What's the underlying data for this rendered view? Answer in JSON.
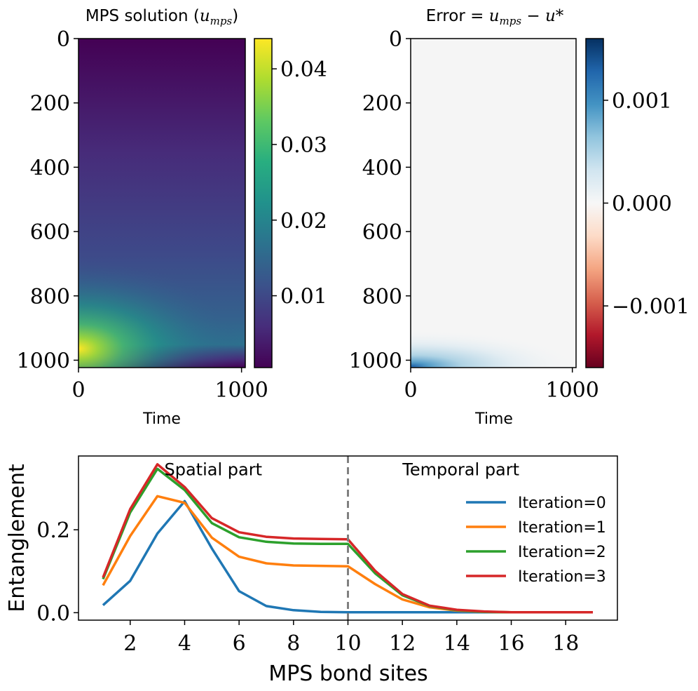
{
  "chart_data": [
    {
      "type": "heatmap",
      "title_prefix": "MPS solution (",
      "title_math": "u",
      "title_sub": "mps",
      "title_suffix": ")",
      "xlabel": "Time",
      "ylabel": "",
      "x_ticks": [
        "0",
        "1000"
      ],
      "y_ticks": [
        "0",
        "200",
        "400",
        "600",
        "800",
        "1000"
      ],
      "xlim": [
        0,
        1023
      ],
      "ylim": [
        1023,
        0
      ],
      "colormap": "viridis",
      "colorbar": {
        "range": [
          0.0005,
          0.044
        ],
        "ticks": [
          0.01,
          0.02,
          0.03,
          0.04
        ],
        "tick_labels": [
          "0.01",
          "0.02",
          "0.03",
          "0.04"
        ]
      },
      "peak": {
        "x": 0,
        "y": 960,
        "value": 0.044
      }
    },
    {
      "type": "heatmap",
      "title_prefix": "Error = ",
      "title_math": "u",
      "title_sub": "mps",
      "title_suffix": " − u*",
      "xlabel": "Time",
      "ylabel": "",
      "x_ticks": [
        "0",
        "1000"
      ],
      "y_ticks": [
        "0",
        "200",
        "400",
        "600",
        "800",
        "1000"
      ],
      "xlim": [
        0,
        1023
      ],
      "ylim": [
        1023,
        0
      ],
      "colormap": "RdBu",
      "colorbar": {
        "range": [
          -0.0016,
          0.0016
        ],
        "ticks": [
          0.001,
          0.0,
          -0.001
        ],
        "tick_labels": [
          "0.001",
          "0.000",
          "−0.001"
        ]
      },
      "peak": {
        "x": 0,
        "y": 1020,
        "value": 0.0012
      }
    },
    {
      "type": "line",
      "xlabel": "MPS bond sites",
      "ylabel": "Entanglement",
      "x": [
        1,
        2,
        3,
        4,
        5,
        6,
        7,
        8,
        9,
        10,
        11,
        12,
        13,
        14,
        15,
        16,
        17,
        18,
        19
      ],
      "x_ticks": [
        2,
        4,
        6,
        8,
        10,
        12,
        14,
        16,
        18
      ],
      "y_ticks": [
        0.0,
        0.2
      ],
      "y_tick_labels": [
        "0.0",
        "0.2"
      ],
      "xlim": [
        0.1,
        19.9
      ],
      "ylim": [
        -0.018,
        0.378
      ],
      "divider_x": 10,
      "annotations": [
        {
          "text": "Spatial part",
          "x": 5.05,
          "y": 0.345
        },
        {
          "text": "Temporal part",
          "x": 14.15,
          "y": 0.345
        }
      ],
      "legend_position": "upper-right",
      "series": [
        {
          "name": "Iteration=0",
          "color": "#1f77b4",
          "values": [
            0.018,
            0.077,
            0.191,
            0.269,
            0.155,
            0.052,
            0.016,
            0.006,
            0.002,
            0.001,
            0.001,
            0.001,
            0.001,
            0.001,
            0.001,
            0.001,
            0.001,
            0.001,
            0.001
          ]
        },
        {
          "name": "Iteration=1",
          "color": "#ff7f0e",
          "values": [
            0.066,
            0.185,
            0.281,
            0.265,
            0.181,
            0.135,
            0.119,
            0.114,
            0.113,
            0.112,
            0.069,
            0.032,
            0.013,
            0.005,
            0.002,
            0.001,
            0.001,
            0.001,
            0.001
          ]
        },
        {
          "name": "Iteration=2",
          "color": "#2ca02c",
          "values": [
            0.081,
            0.242,
            0.347,
            0.296,
            0.216,
            0.182,
            0.171,
            0.167,
            0.166,
            0.166,
            0.095,
            0.042,
            0.016,
            0.006,
            0.002,
            0.001,
            0.001,
            0.001,
            0.001
          ]
        },
        {
          "name": "Iteration=3",
          "color": "#d62728",
          "values": [
            0.085,
            0.25,
            0.358,
            0.303,
            0.228,
            0.194,
            0.183,
            0.179,
            0.178,
            0.177,
            0.101,
            0.045,
            0.017,
            0.007,
            0.003,
            0.001,
            0.001,
            0.001,
            0.001
          ]
        }
      ]
    }
  ]
}
